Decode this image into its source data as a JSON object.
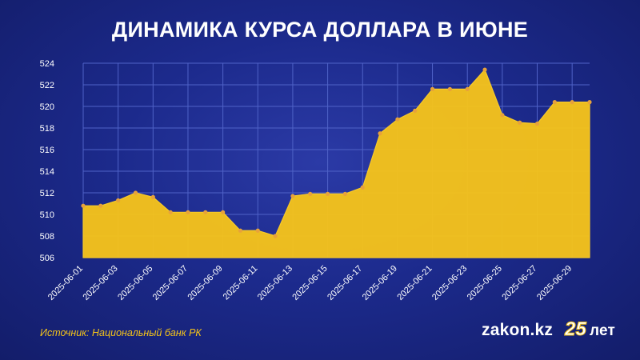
{
  "header": {
    "title": "ДИНАМИКА КУРСА ДОЛЛАРА В ИЮНЕ"
  },
  "footer": {
    "source": "Источник: Национальный банк РК",
    "logo_text": "zakon.kz",
    "logo_badge": "25",
    "logo_years": "лет"
  },
  "colors": {
    "fill": "#f5c31b",
    "marker": "#e7a23a",
    "grid": "#4f62c7",
    "tick_text": "#ffffff"
  },
  "chart_data": {
    "type": "area",
    "title": "ДИНАМИКА КУРСА ДОЛЛАРА В ИЮНЕ",
    "xlabel": "",
    "ylabel": "",
    "ylim": [
      506,
      524
    ],
    "yticks": [
      506,
      508,
      510,
      512,
      514,
      516,
      518,
      520,
      522,
      524
    ],
    "grid": true,
    "legend": "none",
    "x_tick_labels": [
      "2025-06-01",
      "2025-06-03",
      "2025-06-05",
      "2025-06-07",
      "2025-06-09",
      "2025-06-11",
      "2025-06-13",
      "2025-06-15",
      "2025-06-17",
      "2025-06-19",
      "2025-06-21",
      "2025-06-23",
      "2025-06-25",
      "2025-06-27",
      "2025-06-29"
    ],
    "x": [
      "2025-06-01",
      "2025-06-02",
      "2025-06-03",
      "2025-06-04",
      "2025-06-05",
      "2025-06-06",
      "2025-06-07",
      "2025-06-08",
      "2025-06-09",
      "2025-06-10",
      "2025-06-11",
      "2025-06-12",
      "2025-06-13",
      "2025-06-14",
      "2025-06-15",
      "2025-06-16",
      "2025-06-17",
      "2025-06-18",
      "2025-06-19",
      "2025-06-20",
      "2025-06-21",
      "2025-06-22",
      "2025-06-23",
      "2025-06-24",
      "2025-06-25",
      "2025-06-26",
      "2025-06-27",
      "2025-06-28",
      "2025-06-29",
      "2025-06-30"
    ],
    "series": [
      {
        "values": [
          510.8,
          510.8,
          511.3,
          512.0,
          511.6,
          510.2,
          510.2,
          510.2,
          510.2,
          508.5,
          508.5,
          508.0,
          511.7,
          511.9,
          511.9,
          511.9,
          512.5,
          517.5,
          518.8,
          519.6,
          521.6,
          521.6,
          521.6,
          523.4,
          519.2,
          518.5,
          518.4,
          520.4,
          520.4,
          520.4
        ]
      }
    ]
  }
}
